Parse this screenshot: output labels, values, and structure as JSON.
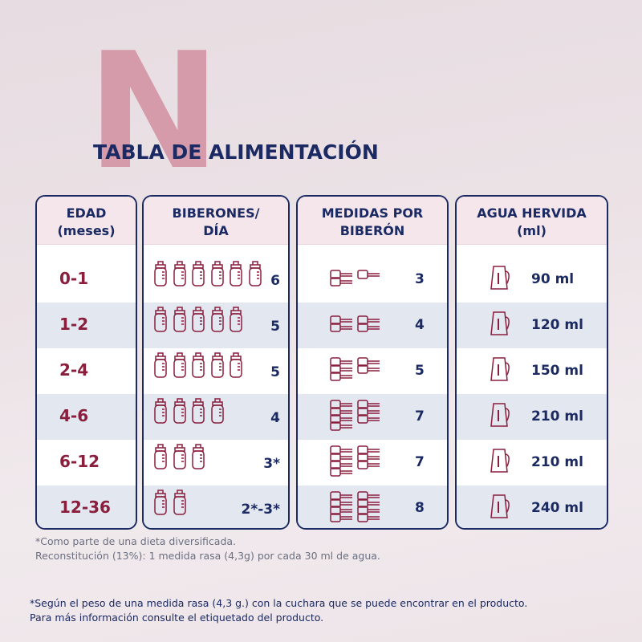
{
  "title": "TABLA DE ALIMENTACIÓN",
  "table": {
    "headers": [
      [
        "EDAD",
        "(meses)"
      ],
      [
        "BIBERONES/",
        "DÍA"
      ],
      [
        "MEDIDAS POR",
        "BIBERÓN"
      ],
      [
        "AGUA HERVIDA",
        "(ml)"
      ]
    ],
    "rows": [
      [
        "0-1",
        "6",
        "3",
        "90 ml"
      ],
      [
        "1-2",
        "5",
        "4",
        "120 ml"
      ],
      [
        "2-4",
        "5",
        "5",
        "150 ml"
      ],
      [
        "4-6",
        "4",
        "7",
        "210 ml"
      ],
      [
        "6-12",
        "3*",
        "7",
        "210 ml"
      ],
      [
        "12-36",
        "2*-3*",
        "8",
        "240 ml"
      ]
    ]
  },
  "notes": [
    "*Como parte de una dieta diversificada.",
    "Reconstitución (13%): 1 medida rasa (4,3g) por cada 30 ml de agua."
  ],
  "footer": [
    "*Según el peso de una medida rasa (4,3 g.) con la cuchara que se puede encontrar en el producto.",
    "Para más información consulte el etiquetado del producto."
  ]
}
